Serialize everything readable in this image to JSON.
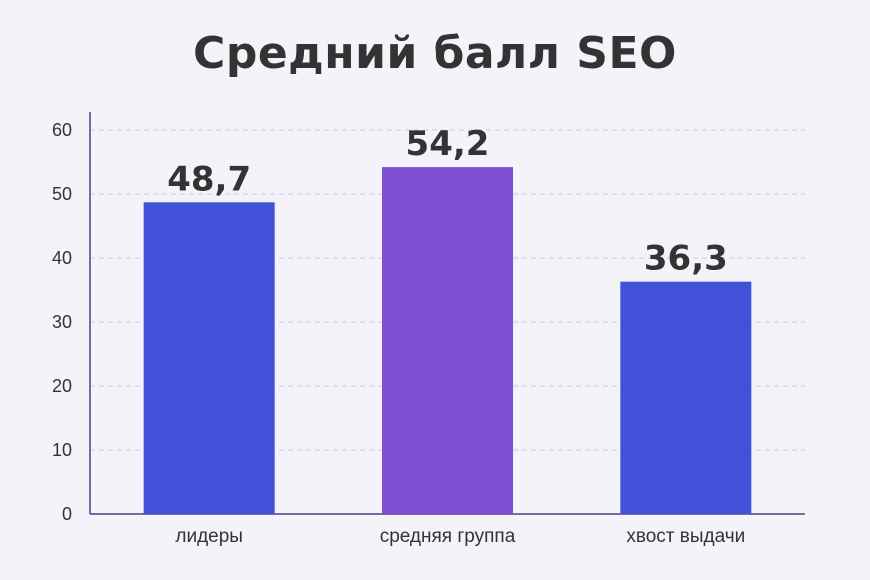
{
  "chart_data": {
    "type": "bar",
    "title": "Средний балл SEO",
    "xlabel": "",
    "ylabel": "",
    "categories": [
      "лидеры",
      "средняя группа",
      "хвост выдачи"
    ],
    "values": [
      48.7,
      54.2,
      36.3
    ],
    "value_labels": [
      "48,7",
      "54,2",
      "36,3"
    ],
    "bar_colors": [
      "#4152d8",
      "#7f4fd3",
      "#4152d8"
    ],
    "ylim": [
      0,
      60
    ],
    "yticks": [
      0,
      10,
      20,
      30,
      40,
      50,
      60
    ],
    "grid": true,
    "legend": "none"
  },
  "colors": {
    "background": "#f4f3f9",
    "axis": "#4b3f86",
    "grid": "#c9c4e2",
    "text": "#333333"
  }
}
